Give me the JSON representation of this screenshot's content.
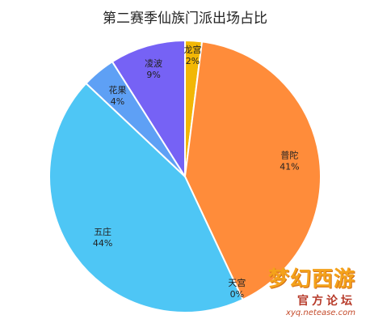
{
  "chart_data": {
    "type": "pie",
    "title": "第二赛季仙族门派出场占比",
    "start_angle_deg": 0,
    "direction": "clockwise",
    "slices": [
      {
        "label": "龙宫",
        "value": 2,
        "value_label": "2%",
        "color": "#f2b705"
      },
      {
        "label": "普陀",
        "value": 41,
        "value_label": "41%",
        "color": "#ff8c3a"
      },
      {
        "label": "天宫",
        "value": 0,
        "value_label": "0%",
        "color": "#ff8c3a"
      },
      {
        "label": "五庄",
        "value": 44,
        "value_label": "44%",
        "color": "#4ec6f5"
      },
      {
        "label": "花果",
        "value": 4,
        "value_label": "4%",
        "color": "#5ea0f5"
      },
      {
        "label": "凌波",
        "value": 9,
        "value_label": "9%",
        "color": "#7662f5"
      }
    ]
  },
  "watermark": {
    "logo": "梦幻西游",
    "subtitle": "官方论坛",
    "url": "xyq.netease.com"
  }
}
